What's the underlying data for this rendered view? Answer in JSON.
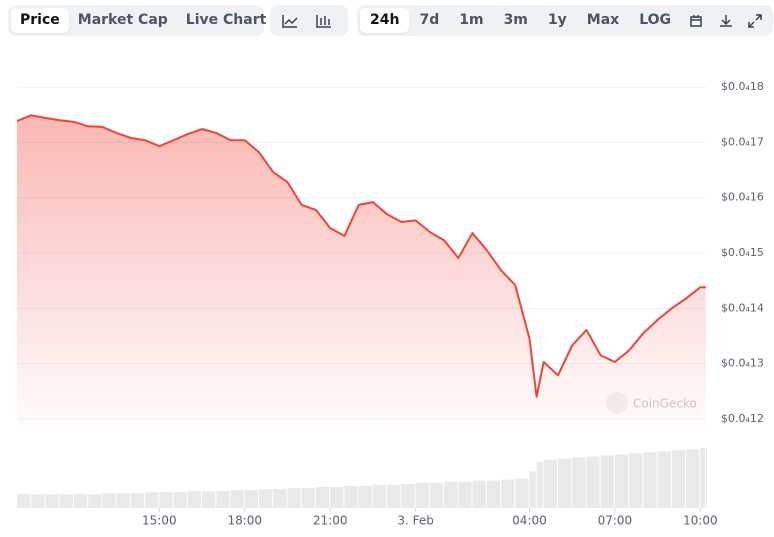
{
  "toolbar": {
    "tabs": [
      "Price",
      "Market Cap",
      "Live Chart"
    ],
    "ranges": [
      "24h",
      "7d",
      "1m",
      "3m",
      "1y",
      "Max",
      "LOG"
    ]
  },
  "chart_data": {
    "type": "area",
    "watermark": "CoinGecko",
    "color": "#f04438",
    "volume_color": "#e9e9ec",
    "x": [
      10,
      10.5,
      11,
      11.5,
      12,
      12.5,
      13,
      13.5,
      14,
      14.5,
      15,
      15.5,
      16,
      16.5,
      17,
      17.5,
      18,
      18.5,
      19,
      19.5,
      20,
      20.5,
      21,
      21.5,
      22,
      22.5,
      23,
      23.5,
      24,
      24.5,
      25,
      25.5,
      26,
      26.5,
      27,
      27.5,
      28,
      28.25,
      28.5,
      29,
      29.5,
      30,
      30.5,
      31,
      31.5,
      32,
      32.5,
      33,
      33.5,
      34,
      34.2
    ],
    "values": [
      1.7385e-05,
      1.749e-05,
      1.744e-05,
      1.74e-05,
      1.737e-05,
      1.729e-05,
      1.728e-05,
      1.717e-05,
      1.708e-05,
      1.704e-05,
      1.693e-05,
      1.704e-05,
      1.715e-05,
      1.724e-05,
      1.717e-05,
      1.704e-05,
      1.704e-05,
      1.682e-05,
      1.646e-05,
      1.628e-05,
      1.587e-05,
      1.578e-05,
      1.545e-05,
      1.531e-05,
      1.587e-05,
      1.592e-05,
      1.57e-05,
      1.556e-05,
      1.559e-05,
      1.538e-05,
      1.523e-05,
      1.491e-05,
      1.536e-05,
      1.505e-05,
      1.469e-05,
      1.442e-05,
      1.345e-05,
      1.24e-05,
      1.303e-05,
      1.279e-05,
      1.333e-05,
      1.361e-05,
      1.315e-05,
      1.303e-05,
      1.324e-05,
      1.355e-05,
      1.379e-05,
      1.4e-05,
      1.418e-05,
      1.438e-05,
      1.438e-05
    ],
    "volume": [
      13,
      13,
      13,
      13,
      13,
      13,
      14,
      14,
      14,
      15,
      15,
      15,
      16,
      16,
      16,
      17,
      17,
      18,
      18,
      19,
      19,
      20,
      20,
      21,
      21,
      22,
      22,
      23,
      24,
      24,
      25,
      25,
      26,
      26,
      27,
      28,
      35,
      44,
      46,
      47,
      48,
      49,
      50,
      51,
      52,
      53,
      54,
      55,
      56,
      57,
      57
    ],
    "volume_lim": [
      0,
      60
    ],
    "xlim": [
      10,
      34.2
    ],
    "xticks": [
      {
        "value": 15,
        "label": "15:00"
      },
      {
        "value": 18,
        "label": "18:00"
      },
      {
        "value": 21,
        "label": "21:00"
      },
      {
        "value": 24,
        "label": "3. Feb"
      },
      {
        "value": 28,
        "label": "04:00"
      },
      {
        "value": 31,
        "label": "07:00"
      },
      {
        "value": 34,
        "label": "10:00"
      }
    ],
    "ylim": [
      1.19e-05,
      1.85e-05
    ],
    "yticks": [
      {
        "value": 1.2e-05,
        "label": "$0.0₄12"
      },
      {
        "value": 1.3e-05,
        "label": "$0.0₄13"
      },
      {
        "value": 1.4e-05,
        "label": "$0.0₄14"
      },
      {
        "value": 1.5e-05,
        "label": "$0.0₄15"
      },
      {
        "value": 1.6e-05,
        "label": "$0.0₄16"
      },
      {
        "value": 1.7e-05,
        "label": "$0.0₄17"
      },
      {
        "value": 1.8e-05,
        "label": "$0.0₄18"
      }
    ],
    "grid": true
  }
}
